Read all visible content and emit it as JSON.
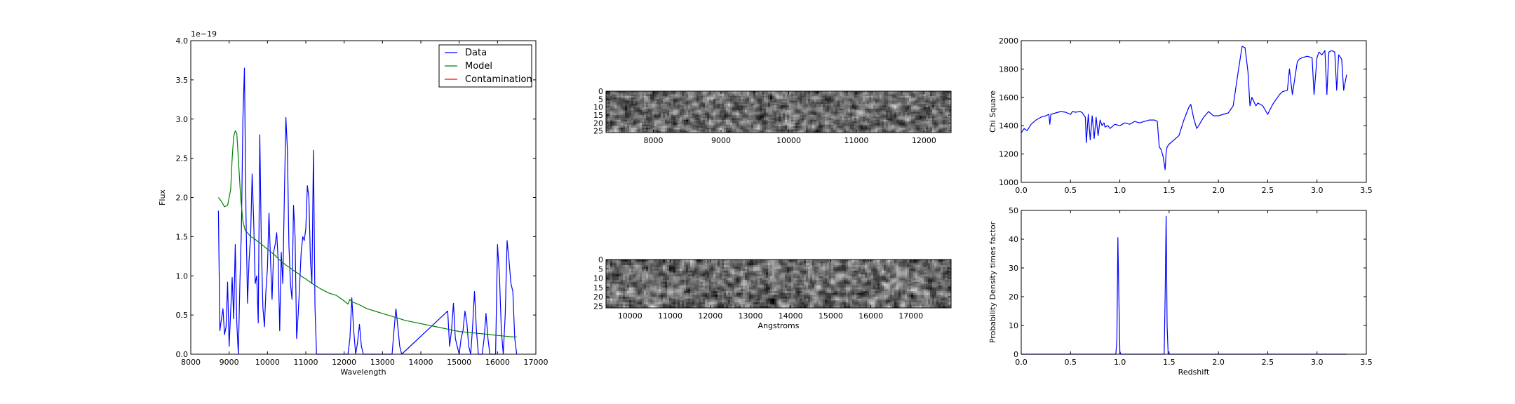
{
  "chart_data": [
    {
      "id": "spectrum",
      "type": "line",
      "xlabel": "Wavelength",
      "ylabel": "Flux",
      "offset_text": "1e−19",
      "xlim": [
        8000,
        17000
      ],
      "ylim": [
        0,
        4.0
      ],
      "xticks": [
        8000,
        9000,
        10000,
        11000,
        12000,
        13000,
        14000,
        15000,
        16000,
        17000
      ],
      "yticks": [
        "0.0",
        "0.5",
        "1.0",
        "1.5",
        "2.0",
        "2.5",
        "3.0",
        "3.5",
        "4.0"
      ],
      "legend": {
        "placement": "top-right",
        "entries": [
          "Data",
          "Model",
          "Contamination"
        ]
      },
      "series": [
        {
          "name": "Data",
          "color": "#0000ff",
          "x": [
            8720,
            8760,
            8800,
            8840,
            8880,
            8920,
            8960,
            9000,
            9040,
            9080,
            9120,
            9160,
            9200,
            9240,
            9280,
            9320,
            9360,
            9400,
            9440,
            9480,
            9520,
            9560,
            9600,
            9640,
            9680,
            9720,
            9760,
            9800,
            9840,
            9880,
            9920,
            9960,
            10000,
            10040,
            10080,
            10120,
            10160,
            10200,
            10240,
            10280,
            10320,
            10360,
            10400,
            10440,
            10480,
            10520,
            10560,
            10600,
            10640,
            10680,
            10720,
            10760,
            10800,
            10840,
            10880,
            10920,
            10960,
            11000,
            11040,
            11080,
            11120,
            11160,
            11200,
            11240,
            11280,
            11320,
            11360,
            11400,
            11800,
            12100,
            12150,
            12200,
            12250,
            12300,
            12350,
            12400,
            12450,
            12500,
            13250,
            13300,
            13350,
            13400,
            13450,
            13500,
            14700,
            14750,
            14800,
            14850,
            14900,
            14950,
            15000,
            15050,
            15100,
            15150,
            15200,
            15250,
            15300,
            15350,
            15400,
            15450,
            15500,
            15550,
            15600,
            15650,
            15700,
            15750,
            15800,
            15850,
            15900,
            15950,
            16000,
            16050,
            16100,
            16150,
            16200,
            16250,
            16300,
            16350,
            16400,
            16450,
            16500
          ],
          "y": [
            1.83,
            0.3,
            0.45,
            0.58,
            0.25,
            0.35,
            0.92,
            0.1,
            0.55,
            0.98,
            0.45,
            1.4,
            0.4,
            0,
            0.9,
            1.6,
            3.0,
            3.65,
            1.8,
            0.65,
            1.2,
            1.5,
            2.3,
            1.7,
            0.9,
            1.0,
            0.4,
            2.8,
            1.4,
            0.6,
            0.35,
            0.8,
            1.1,
            1.8,
            1.2,
            0.7,
            1.3,
            1.4,
            1.55,
            1.2,
            0.3,
            1.3,
            0.9,
            2.0,
            3.02,
            2.6,
            1.4,
            0.9,
            0.7,
            1.9,
            1.5,
            0.2,
            0.5,
            0.9,
            1.3,
            1.5,
            1.45,
            1.6,
            2.15,
            2.0,
            1.2,
            0.9,
            2.6,
            0.6,
            0,
            0,
            0,
            0,
            0,
            0,
            0.2,
            0.72,
            0.3,
            0,
            0.15,
            0.38,
            0.1,
            0,
            0,
            0.3,
            0.58,
            0.35,
            0.1,
            0,
            0.55,
            0.1,
            0.3,
            0.65,
            0.2,
            0.1,
            0,
            0.2,
            0.3,
            0.55,
            0.4,
            0.1,
            0,
            0.35,
            0.8,
            0.3,
            0,
            0,
            0,
            0.2,
            0.52,
            0.2,
            0,
            0,
            0,
            0,
            1.4,
            1.0,
            0.3,
            0,
            0.5,
            1.45,
            1.2,
            0.9,
            0.8,
            0.2,
            0
          ]
        },
        {
          "name": "Model",
          "color": "#008000",
          "x": [
            8720,
            8800,
            8880,
            8960,
            9040,
            9080,
            9120,
            9160,
            9200,
            9240,
            9300,
            9360,
            9420,
            9480,
            9560,
            9640,
            9720,
            9800,
            9900,
            10000,
            10100,
            10200,
            10300,
            10400,
            10500,
            10600,
            10700,
            10800,
            10900,
            11000,
            11200,
            11400,
            11600,
            11800,
            12000,
            12100,
            12150,
            12200,
            12400,
            12600,
            12800,
            13000,
            13200,
            13400,
            13600,
            13800,
            14000,
            14200,
            14400,
            14600,
            14800,
            15000,
            15200,
            15400,
            15600,
            15800,
            16000,
            16200,
            16400,
            16500
          ],
          "y": [
            2.0,
            1.95,
            1.88,
            1.9,
            2.1,
            2.5,
            2.78,
            2.85,
            2.82,
            2.5,
            2.0,
            1.7,
            1.58,
            1.55,
            1.5,
            1.48,
            1.45,
            1.42,
            1.38,
            1.34,
            1.3,
            1.26,
            1.21,
            1.17,
            1.13,
            1.1,
            1.06,
            1.03,
            0.99,
            0.96,
            0.89,
            0.83,
            0.78,
            0.75,
            0.68,
            0.64,
            0.7,
            0.67,
            0.63,
            0.58,
            0.55,
            0.52,
            0.49,
            0.46,
            0.43,
            0.41,
            0.39,
            0.37,
            0.35,
            0.33,
            0.31,
            0.29,
            0.28,
            0.27,
            0.26,
            0.25,
            0.24,
            0.23,
            0.22,
            0.22
          ]
        },
        {
          "name": "Contamination",
          "color": "#ff0000",
          "x": [],
          "y": []
        }
      ]
    },
    {
      "id": "image-top",
      "type": "heatmap",
      "xlim": [
        7300,
        12400
      ],
      "ylim": [
        26,
        0
      ],
      "xticks": [
        8000,
        9000,
        10000,
        11000,
        12000
      ],
      "yticks": [
        "0",
        "5",
        "10",
        "15",
        "20",
        "25"
      ],
      "colormap": "gray"
    },
    {
      "id": "image-bottom",
      "type": "heatmap",
      "xlabel": "Angstroms",
      "xlim": [
        9400,
        18000
      ],
      "ylim": [
        26,
        0
      ],
      "xticks": [
        10000,
        11000,
        12000,
        13000,
        14000,
        15000,
        16000,
        17000
      ],
      "yticks": [
        "0",
        "5",
        "10",
        "15",
        "20",
        "25"
      ],
      "colormap": "gray"
    },
    {
      "id": "chisq",
      "type": "line",
      "ylabel": "Chi Square",
      "xlim": [
        0,
        3.5
      ],
      "ylim": [
        1000,
        2000
      ],
      "xticks": [
        "0.0",
        "0.5",
        "1.0",
        "1.5",
        "2.0",
        "2.5",
        "3.0",
        "3.5"
      ],
      "yticks": [
        "1000",
        "1200",
        "1400",
        "1600",
        "1800",
        "2000"
      ],
      "series": [
        {
          "name": "chi-square",
          "color": "#0000ff",
          "x": [
            0,
            0.03,
            0.06,
            0.1,
            0.15,
            0.2,
            0.25,
            0.28,
            0.29,
            0.3,
            0.35,
            0.4,
            0.45,
            0.5,
            0.52,
            0.55,
            0.6,
            0.62,
            0.65,
            0.66,
            0.68,
            0.7,
            0.72,
            0.74,
            0.76,
            0.78,
            0.8,
            0.82,
            0.84,
            0.85,
            0.88,
            0.9,
            0.95,
            1.0,
            1.05,
            1.1,
            1.15,
            1.2,
            1.25,
            1.3,
            1.35,
            1.38,
            1.4,
            1.42,
            1.44,
            1.46,
            1.47,
            1.48,
            1.5,
            1.55,
            1.6,
            1.65,
            1.7,
            1.72,
            1.75,
            1.78,
            1.8,
            1.85,
            1.9,
            1.95,
            2.0,
            2.05,
            2.1,
            2.15,
            2.2,
            2.24,
            2.27,
            2.3,
            2.32,
            2.34,
            2.36,
            2.38,
            2.4,
            2.45,
            2.5,
            2.55,
            2.6,
            2.62,
            2.65,
            2.7,
            2.72,
            2.75,
            2.8,
            2.82,
            2.85,
            2.9,
            2.95,
            2.97,
            3.0,
            3.02,
            3.05,
            3.08,
            3.1,
            3.12,
            3.15,
            3.18,
            3.2,
            3.22,
            3.25,
            3.27,
            3.3
          ],
          "y": [
            1350,
            1380,
            1365,
            1410,
            1440,
            1460,
            1470,
            1480,
            1410,
            1480,
            1490,
            1500,
            1495,
            1480,
            1500,
            1495,
            1500,
            1490,
            1460,
            1280,
            1480,
            1300,
            1470,
            1310,
            1460,
            1330,
            1440,
            1400,
            1420,
            1390,
            1400,
            1380,
            1410,
            1400,
            1420,
            1410,
            1430,
            1420,
            1430,
            1440,
            1440,
            1430,
            1250,
            1230,
            1180,
            1090,
            1210,
            1250,
            1270,
            1300,
            1330,
            1440,
            1530,
            1550,
            1450,
            1380,
            1400,
            1460,
            1500,
            1470,
            1470,
            1480,
            1490,
            1540,
            1780,
            1960,
            1950,
            1780,
            1540,
            1600,
            1570,
            1540,
            1560,
            1540,
            1480,
            1550,
            1600,
            1620,
            1640,
            1650,
            1800,
            1620,
            1850,
            1870,
            1880,
            1890,
            1880,
            1620,
            1880,
            1920,
            1900,
            1930,
            1620,
            1920,
            1930,
            1920,
            1650,
            1900,
            1870,
            1650,
            1760
          ]
        }
      ]
    },
    {
      "id": "pdf",
      "type": "line",
      "xlabel": "Redshift",
      "ylabel": "Probability Density times factor",
      "xlim": [
        0,
        3.5
      ],
      "ylim": [
        0,
        50
      ],
      "xticks": [
        "0.0",
        "0.5",
        "1.0",
        "1.5",
        "2.0",
        "2.5",
        "3.0",
        "3.5"
      ],
      "yticks": [
        "0",
        "10",
        "20",
        "30",
        "40",
        "50"
      ],
      "series": [
        {
          "name": "probability",
          "color": "#0000ff",
          "x": [
            0,
            0.96,
            0.97,
            0.98,
            0.99,
            1.0,
            1.01,
            1.44,
            1.45,
            1.46,
            1.47,
            1.48,
            1.49,
            3.3
          ],
          "y": [
            0,
            0,
            5,
            40.5,
            20,
            1,
            0,
            0,
            0,
            20,
            48,
            10,
            0,
            0
          ]
        }
      ]
    }
  ]
}
